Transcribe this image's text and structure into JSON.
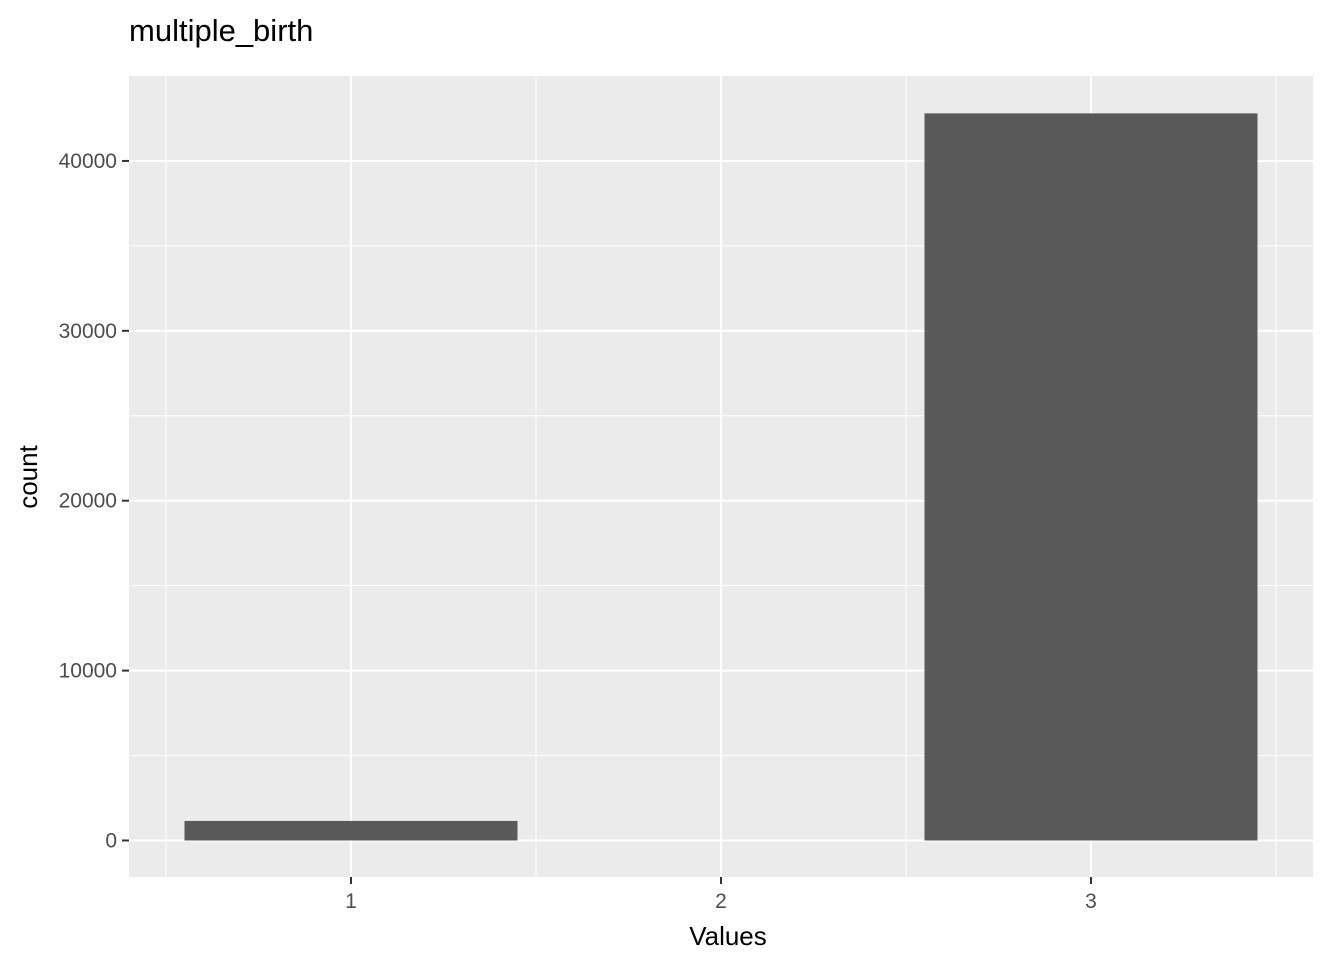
{
  "chart_data": {
    "type": "bar",
    "title": "multiple_birth",
    "xlabel": "Values",
    "ylabel": "count",
    "categories": [
      "1",
      "2",
      "3"
    ],
    "values": [
      1150,
      0,
      42800
    ],
    "xlim": [
      0.4,
      3.6
    ],
    "ylim": [
      -2150,
      45000
    ],
    "yticks": [
      0,
      10000,
      20000,
      30000,
      40000
    ],
    "ytick_labels": [
      "0",
      "10000",
      "20000",
      "30000",
      "40000"
    ],
    "bar_width": 0.9,
    "grid": true,
    "legend": "none",
    "colors": {
      "bar": "#595959",
      "panel": "#ebebeb",
      "grid": "#ffffff",
      "tick_text": "#4d4d4d",
      "tick_mark": "#333333"
    }
  }
}
